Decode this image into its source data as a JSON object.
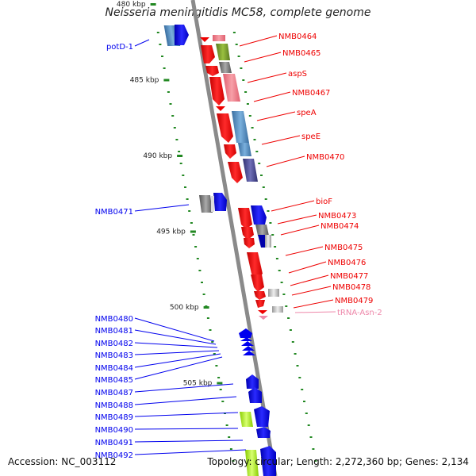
{
  "title": "Neisseria meningitidis MC58, complete genome",
  "footer": {
    "accession": "Accession: NC_003112",
    "info": "Topology: circular; Length: 2,272,360 bp; Genes: 2,134"
  },
  "chart_data": {
    "type": "genome_map",
    "ticks": [
      {
        "label": "480 kbp",
        "kbp": 480
      },
      {
        "label": "485 kbp",
        "kbp": 485
      },
      {
        "label": "490 kbp",
        "kbp": 490
      },
      {
        "label": "495 kbp",
        "kbp": 495
      },
      {
        "label": "500 kbp",
        "kbp": 500
      },
      {
        "label": "505 kbp",
        "kbp": 505
      }
    ],
    "genes_left": [
      "potD-1",
      "NMB0471",
      "NMB0480",
      "NMB0481",
      "NMB0482",
      "NMB0483",
      "NMB0484",
      "NMB0485",
      "NMB0487",
      "NMB0488",
      "NMB0489",
      "NMB0490",
      "NMB0491",
      "NMB0492"
    ],
    "genes_right": [
      "NMB0464",
      "NMB0465",
      "aspS",
      "NMB0467",
      "speA",
      "speE",
      "NMB0470",
      "bioF",
      "NMB0473",
      "NMB0474",
      "NMB0475",
      "NMB0476",
      "NMB0477",
      "NMB0478",
      "NMB0479",
      "tRNA-Asn-2"
    ],
    "colors": {
      "forward_strand": "#0000ee",
      "reverse_strand": "#ee0000",
      "trna": "#ee88aa",
      "backbone": "#888888",
      "tick": "#228822"
    }
  }
}
